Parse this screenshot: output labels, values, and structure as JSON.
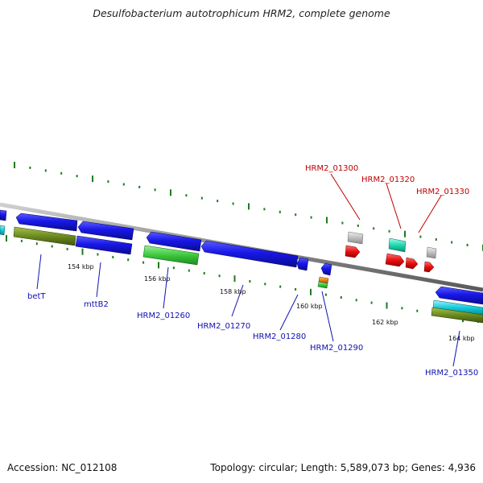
{
  "title": "Desulfobacterium autotrophicum HRM2, complete genome",
  "footer": {
    "accession": "Accession: NC_012108",
    "summary": "Topology: circular; Length: 5,589,073 bp; Genes: 4,936"
  },
  "colors": {
    "blue": "#1414e0",
    "olive": "#6b8a1e",
    "green": "#3cc83c",
    "gray": "#b8b8b8",
    "red": "#e01010",
    "teal": "#20d8b0",
    "cyan": "#10c8d8",
    "orange": "#f08010",
    "label_blue": "#1010b0",
    "label_red": "#c00000",
    "tick_green": "#207a20"
  },
  "ticks": [
    {
      "label": "154 kbp"
    },
    {
      "label": "156 kbp"
    },
    {
      "label": "158 kbp"
    },
    {
      "label": "160 kbp"
    },
    {
      "label": "162 kbp"
    },
    {
      "label": "164 kbp"
    }
  ],
  "genes_below": [
    {
      "label": "betT"
    },
    {
      "label": "mttB2"
    },
    {
      "label": "HRM2_01260"
    },
    {
      "label": "HRM2_01270"
    },
    {
      "label": "HRM2_01280"
    },
    {
      "label": "HRM2_01290"
    },
    {
      "label": "HRM2_01350"
    }
  ],
  "genes_above": [
    {
      "label": "HRM2_01300"
    },
    {
      "label": "HRM2_01320"
    },
    {
      "label": "HRM2_01330"
    }
  ]
}
